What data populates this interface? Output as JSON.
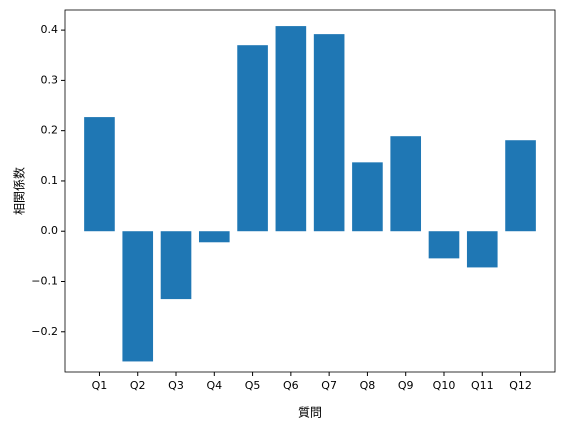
{
  "chart_data": {
    "type": "bar",
    "y_label": "相関係数",
    "x_label": "質問",
    "categories": [
      "Q1",
      "Q2",
      "Q3",
      "Q4",
      "Q5",
      "Q6",
      "Q7",
      "Q8",
      "Q9",
      "Q10",
      "Q11",
      "Q12"
    ],
    "values": [
      0.227,
      -0.259,
      -0.135,
      -0.022,
      0.37,
      0.408,
      0.392,
      0.137,
      0.189,
      -0.054,
      -0.072,
      0.181
    ],
    "color": "#1f77b4",
    "ylim": [
      -0.28,
      0.44
    ],
    "yticks": [
      {
        "value": -0.2,
        "label": "−0.2"
      },
      {
        "value": -0.1,
        "label": "−0.1"
      },
      {
        "value": 0,
        "label": "0.0"
      },
      0.1,
      0.2,
      0.3,
      0.4
    ],
    "grid": false
  }
}
